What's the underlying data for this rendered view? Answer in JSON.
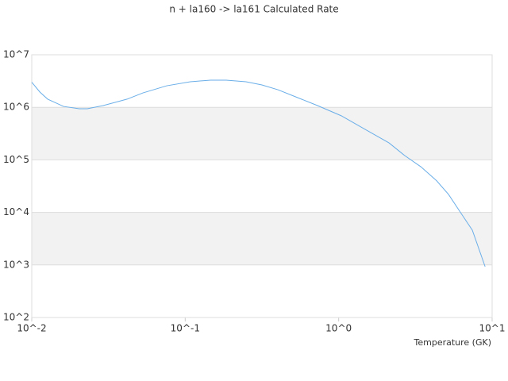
{
  "chart_data": {
    "type": "line",
    "title": "n + la160 -> la161 Calculated Rate",
    "x_label": "Temperature (GK)",
    "x_log": true,
    "y_log": true,
    "bands": true,
    "xlim": [
      0.01,
      10
    ],
    "ylim": [
      100,
      10000000
    ],
    "xticks": [
      {
        "value": 0.01,
        "label": "10^-2"
      },
      {
        "value": 0.1,
        "label": "10^-1"
      },
      {
        "value": 1,
        "label": "10^0"
      },
      {
        "value": 10,
        "label": "10^1"
      }
    ],
    "yticks": [
      {
        "value": 100,
        "label": "10^2"
      },
      {
        "value": 1000,
        "label": "10^3"
      },
      {
        "value": 10000,
        "label": "10^4"
      },
      {
        "value": 100000,
        "label": "10^5"
      },
      {
        "value": 1000000,
        "label": "10^6"
      },
      {
        "value": 10000000,
        "label": "10^7"
      }
    ],
    "x": [
      0.01,
      0.0113,
      0.0127,
      0.0161,
      0.0204,
      0.023,
      0.0292,
      0.0418,
      0.053,
      0.0758,
      0.108,
      0.146,
      0.185,
      0.249,
      0.316,
      0.402,
      0.509,
      0.728,
      1.04,
      1.49,
      2.13,
      2.7,
      3.43,
      4.35,
      5.2,
      6.22,
      7.43,
      9.0
    ],
    "series": [
      {
        "color": "#6aaee8",
        "values": [
          3000000,
          1950000,
          1430000,
          1040000,
          940000,
          940000,
          1080000,
          1430000,
          1880000,
          2570000,
          3060000,
          3290000,
          3290000,
          3060000,
          2670000,
          2160000,
          1640000,
          1080000,
          690000,
          380000,
          210000,
          120000,
          74000,
          40000,
          22000,
          10000,
          4600,
          930
        ]
      }
    ]
  }
}
